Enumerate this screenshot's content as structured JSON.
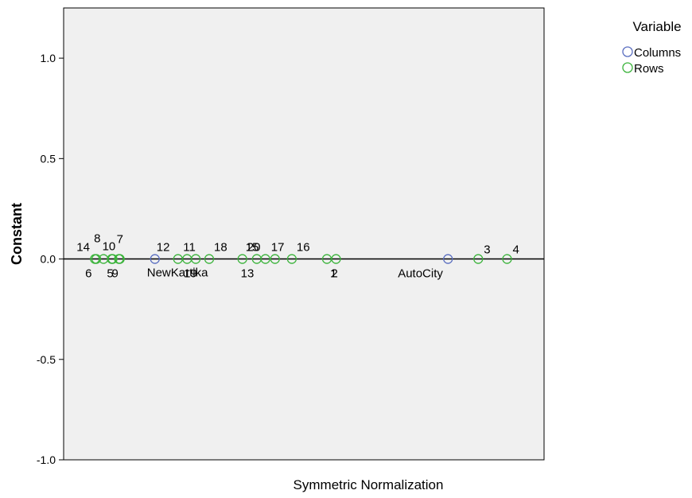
{
  "chart_data": {
    "type": "scatter",
    "xlabel": "Symmetric Normalization",
    "ylabel": "Constant",
    "ylim": [
      -1.0,
      1.25
    ],
    "yticks": [
      "1.0",
      "0.5",
      "0.0",
      "-0.5",
      "-1.0"
    ],
    "ytick_values": [
      1.0,
      0.5,
      0.0,
      -0.5,
      -1.0
    ],
    "xlim": [
      0,
      1
    ],
    "zero_line": true,
    "legend": {
      "title": "Variable",
      "placement": "top-right outside"
    },
    "series": [
      {
        "name": "Columns",
        "color": "#5a6ec0",
        "points": [
          {
            "label": "NewKartika",
            "x": 0.19,
            "y": 0.0
          },
          {
            "label": "AutoCity",
            "x": 0.8,
            "y": 0.0
          }
        ]
      },
      {
        "name": "Rows",
        "color": "#3bb33b",
        "points": [
          {
            "label": "14",
            "x": 0.065,
            "y": 0.0
          },
          {
            "label": "6",
            "x": 0.068,
            "y": 0.0
          },
          {
            "label": "8",
            "x": 0.083,
            "y": 0.0
          },
          {
            "label": "10",
            "x": 0.102,
            "y": 0.0
          },
          {
            "label": "5",
            "x": 0.1,
            "y": 0.0
          },
          {
            "label": "7",
            "x": 0.117,
            "y": 0.0
          },
          {
            "label": "9",
            "x": 0.115,
            "y": 0.0
          },
          {
            "label": "12",
            "x": 0.238,
            "y": 0.0
          },
          {
            "label": "11",
            "x": 0.257,
            "y": 0.0
          },
          {
            "label": "19",
            "x": 0.275,
            "y": 0.0
          },
          {
            "label": "18",
            "x": 0.303,
            "y": 0.0
          },
          {
            "label": "15",
            "x": 0.372,
            "y": 0.0
          },
          {
            "label": "20",
            "x": 0.402,
            "y": 0.0
          },
          {
            "label": "17",
            "x": 0.44,
            "y": 0.0
          },
          {
            "label": "13",
            "x": 0.42,
            "y": 0.0
          },
          {
            "label": "16",
            "x": 0.475,
            "y": 0.0
          },
          {
            "label": "1",
            "x": 0.548,
            "y": 0.0
          },
          {
            "label": "2",
            "x": 0.567,
            "y": 0.0
          },
          {
            "label": "3",
            "x": 0.863,
            "y": 0.0
          },
          {
            "label": "4",
            "x": 0.923,
            "y": 0.0
          }
        ]
      }
    ]
  }
}
